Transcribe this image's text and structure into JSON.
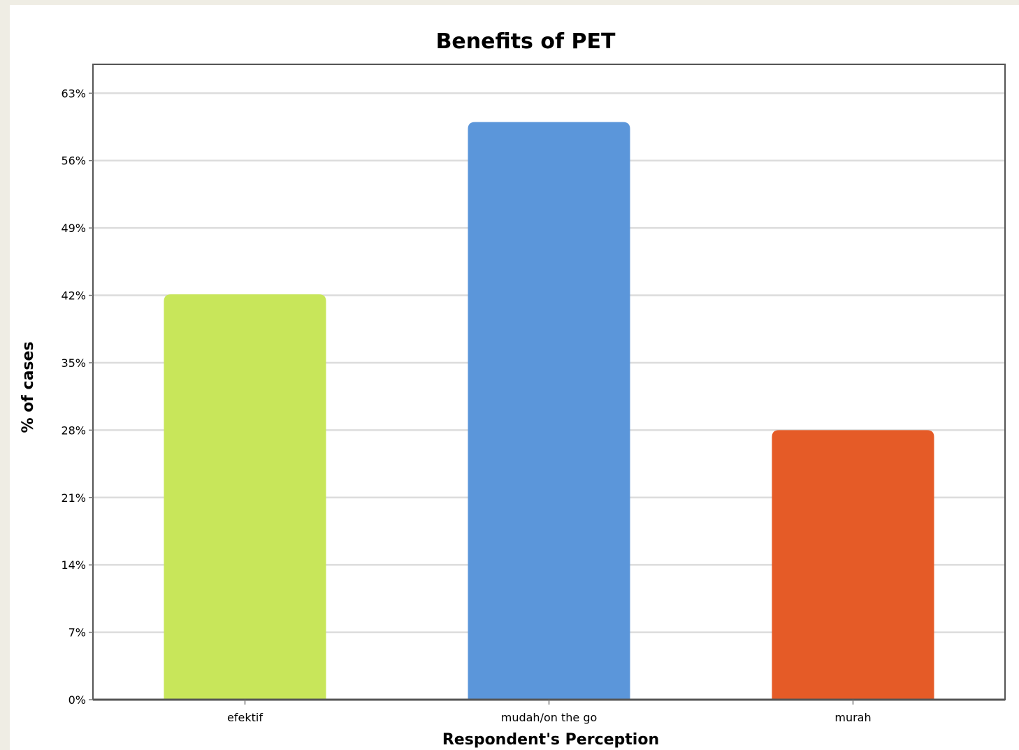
{
  "chart_data": {
    "type": "bar",
    "title": "Benefits of PET",
    "xlabel": "Respondent's Perception",
    "ylabel": "% of cases",
    "categories": [
      "efektif",
      "mudah/on the go",
      "murah"
    ],
    "values": [
      42.1,
      60.0,
      28.0
    ],
    "colors": [
      "#c8e65a",
      "#5b96da",
      "#e55b27"
    ],
    "ylim": [
      0,
      66
    ],
    "yticks": [
      0,
      7,
      14,
      21,
      28,
      35,
      42,
      49,
      56,
      63
    ],
    "ytick_labels": [
      "0%",
      "7%",
      "14%",
      "21%",
      "28%",
      "35%",
      "42%",
      "49%",
      "56%",
      "63%"
    ],
    "grid": true,
    "legend": "none"
  }
}
